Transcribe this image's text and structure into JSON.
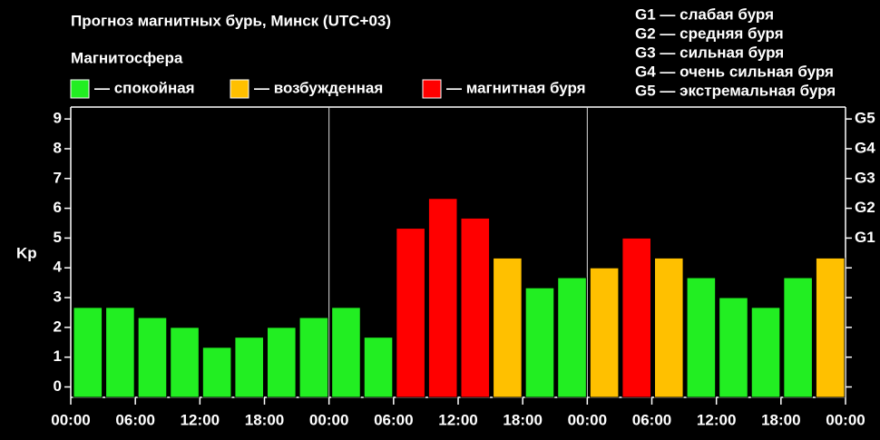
{
  "chart_data": {
    "type": "bar",
    "title": "Прогноз магнитных бурь, Минск (UTC+03)",
    "subtitle": "Магнитосфера",
    "legend": [
      {
        "label": "— спокойная",
        "color": "#22ee22"
      },
      {
        "label": "— возбужденная",
        "color": "#ffc000"
      },
      {
        "label": "— магнитная буря",
        "color": "#ff0000"
      }
    ],
    "storm_levels": [
      "G1 — слабая буря",
      "G2 — средняя буря",
      "G3 — сильная буря",
      "G4 — очень сильная буря",
      "G5 — экстремальная буря"
    ],
    "y_label": "Kp",
    "values": [
      2.67,
      2.67,
      2.33,
      2,
      1.33,
      1.67,
      2,
      2.33,
      2.67,
      1.67,
      5.33,
      6.33,
      5.67,
      4.33,
      3.33,
      3.67,
      4,
      5,
      4.33,
      3.67,
      3,
      2.67,
      3.67,
      4.33
    ],
    "colors": [
      "#22ee22",
      "#22ee22",
      "#22ee22",
      "#22ee22",
      "#22ee22",
      "#22ee22",
      "#22ee22",
      "#22ee22",
      "#22ee22",
      "#22ee22",
      "#ff0000",
      "#ff0000",
      "#ff0000",
      "#ffc000",
      "#22ee22",
      "#22ee22",
      "#ffc000",
      "#ff0000",
      "#ffc000",
      "#22ee22",
      "#22ee22",
      "#22ee22",
      "#22ee22",
      "#ffc000"
    ],
    "xticks": [
      "00:00",
      "06:00",
      "12:00",
      "18:00",
      "00:00",
      "06:00",
      "12:00",
      "18:00",
      "00:00",
      "06:00",
      "12:00",
      "18:00",
      "00:00"
    ],
    "ylim": [
      -0.35,
      9.4
    ],
    "yticks": [
      0,
      1,
      2,
      3,
      4,
      5,
      6,
      7,
      8,
      9
    ],
    "y2ticks": [
      {
        "value": 5,
        "label": "G1"
      },
      {
        "value": 6,
        "label": "G2"
      },
      {
        "value": 7,
        "label": "G3"
      },
      {
        "value": 8,
        "label": "G4"
      },
      {
        "value": 9,
        "label": "G5"
      }
    ]
  }
}
